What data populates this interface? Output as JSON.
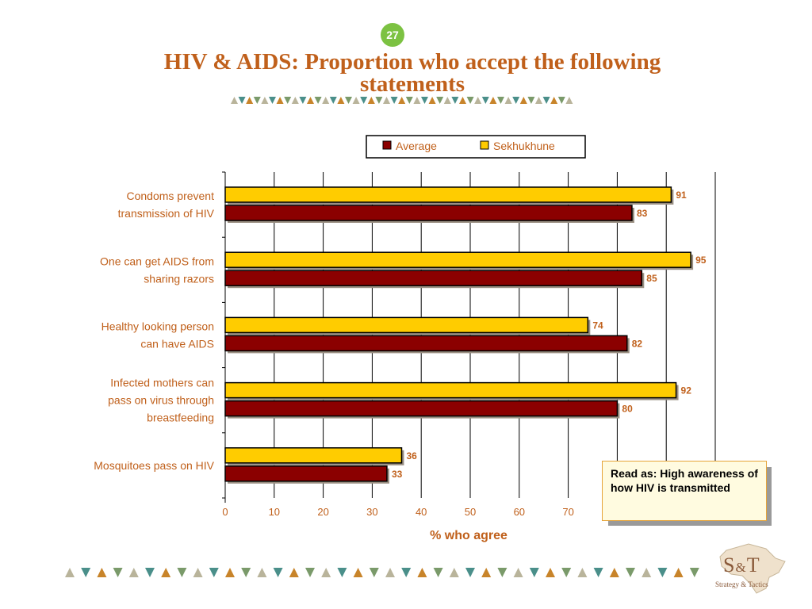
{
  "page_number": "27",
  "title_line1": "HIV & AIDS: Proportion who accept the following",
  "title_line2": "statements",
  "colors": {
    "title": "#c0601b",
    "average": "#8b0000",
    "sekhukhune": "#ffcc00",
    "page_badge": "#7cc242"
  },
  "note": "Read as: High awareness of how HIV is transmitted",
  "logo": {
    "brand": "S&T",
    "tagline": "Strategy & Tactics"
  },
  "chart_data": {
    "type": "bar",
    "orientation": "horizontal",
    "title": "",
    "xlabel": "% who agree",
    "ylabel": "",
    "xlim": [
      0,
      100
    ],
    "xticks": [
      "0",
      "10",
      "20",
      "30",
      "40",
      "50",
      "60",
      "70"
    ],
    "grid": true,
    "legend_position": "top-right",
    "categories": [
      [
        "Condoms prevent",
        "transmission of HIV"
      ],
      [
        "One can get AIDS from",
        "sharing razors"
      ],
      [
        "Healthy looking person",
        "can have AIDS"
      ],
      [
        "Infected mothers can",
        "pass on virus through",
        "breastfeeding"
      ],
      [
        "Mosquitoes pass on HIV"
      ]
    ],
    "series": [
      {
        "name": "Average",
        "color": "#8b0000",
        "values": [
          83,
          85,
          82,
          80,
          33
        ]
      },
      {
        "name": "Sekhukhune",
        "color": "#ffcc00",
        "values": [
          91,
          95,
          74,
          92,
          36
        ]
      }
    ]
  }
}
